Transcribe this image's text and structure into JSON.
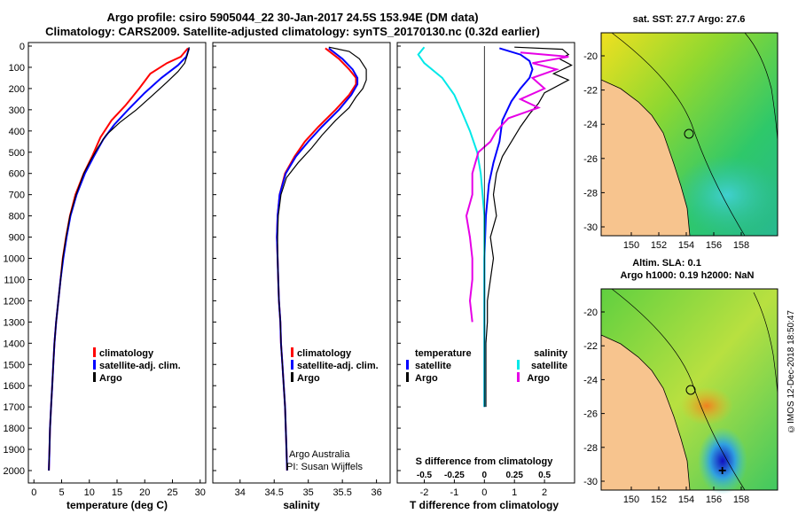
{
  "title_line1": "Argo profile: csiro 5905044_22 30-Jan-2017 24.5S 153.94E (DM data)",
  "title_line2": "Climatology: CARS2009. Satellite-adjusted climatology: synTS_20170130.nc (0.32d earlier)",
  "colors": {
    "climatology": "#ff0000",
    "satellite": "#0000ff",
    "argo": "#000000",
    "sat_salinity": "#00e8e8",
    "argo_salinity": "#e600e6",
    "land": "#f7c48e"
  },
  "depth_axis": {
    "ticks": [
      "0",
      "100",
      "200",
      "300",
      "400",
      "500",
      "600",
      "700",
      "800",
      "900",
      "1000",
      "1100",
      "1200",
      "1300",
      "1400",
      "1500",
      "1600",
      "1700",
      "1800",
      "1900",
      "2000"
    ],
    "range": [
      0,
      2000
    ]
  },
  "chart_data": [
    {
      "type": "line",
      "name": "temperature",
      "xlabel": "temperature (deg C)",
      "xlim": [
        -1,
        31
      ],
      "xticks": [
        "0",
        "5",
        "10",
        "15",
        "20",
        "25",
        "30"
      ],
      "xtick_values": [
        0,
        5,
        10,
        15,
        20,
        25,
        30
      ],
      "legend": [
        "climatology",
        "satellite-adj. clim.",
        "Argo"
      ],
      "series": [
        {
          "name": "climatology",
          "color": "#ff0000",
          "points": [
            [
              27.8,
              10
            ],
            [
              26.5,
              50
            ],
            [
              24,
              80
            ],
            [
              21,
              130
            ],
            [
              19,
              200
            ],
            [
              16.5,
              280
            ],
            [
              14,
              350
            ],
            [
              12,
              430
            ],
            [
              10.5,
              520
            ],
            [
              9,
              600
            ],
            [
              7.5,
              700
            ],
            [
              6.5,
              800
            ],
            [
              5.8,
              900
            ],
            [
              5.2,
              1000
            ],
            [
              4.8,
              1100
            ],
            [
              4.4,
              1200
            ],
            [
              4,
              1300
            ],
            [
              3.7,
              1400
            ],
            [
              3.5,
              1500
            ],
            [
              3.3,
              1600
            ],
            [
              3.1,
              1700
            ],
            [
              2.9,
              1800
            ],
            [
              2.8,
              1900
            ],
            [
              2.7,
              2000
            ]
          ]
        },
        {
          "name": "satellite-adj. clim.",
          "color": "#0000ff",
          "points": [
            [
              28,
              10
            ],
            [
              27.5,
              50
            ],
            [
              26,
              90
            ],
            [
              23,
              150
            ],
            [
              20,
              220
            ],
            [
              17,
              300
            ],
            [
              14.5,
              370
            ],
            [
              12.5,
              440
            ],
            [
              10.8,
              520
            ],
            [
              9.2,
              600
            ],
            [
              7.7,
              700
            ],
            [
              6.6,
              800
            ],
            [
              5.9,
              900
            ],
            [
              5.3,
              1000
            ],
            [
              4.8,
              1100
            ],
            [
              4.4,
              1200
            ],
            [
              4,
              1300
            ],
            [
              3.7,
              1400
            ],
            [
              3.5,
              1500
            ],
            [
              3.3,
              1600
            ],
            [
              3.1,
              1700
            ],
            [
              2.9,
              1800
            ],
            [
              2.8,
              1900
            ],
            [
              2.7,
              2000
            ]
          ]
        },
        {
          "name": "Argo",
          "color": "#000000",
          "points": [
            [
              28,
              5
            ],
            [
              27.7,
              40
            ],
            [
              27.2,
              80
            ],
            [
              26,
              120
            ],
            [
              24,
              170
            ],
            [
              21.5,
              230
            ],
            [
              18.5,
              300
            ],
            [
              15.5,
              360
            ],
            [
              13,
              420
            ],
            [
              11.5,
              480
            ],
            [
              10.2,
              540
            ],
            [
              9,
              600
            ],
            [
              7.6,
              700
            ],
            [
              6.5,
              800
            ],
            [
              5.8,
              900
            ],
            [
              5.2,
              1000
            ],
            [
              4.8,
              1100
            ],
            [
              4.4,
              1200
            ],
            [
              4,
              1300
            ],
            [
              3.7,
              1400
            ],
            [
              3.5,
              1500
            ],
            [
              3.3,
              1600
            ],
            [
              3.1,
              1700
            ],
            [
              2.9,
              1800
            ],
            [
              2.8,
              1900
            ],
            [
              2.7,
              2000
            ]
          ]
        }
      ]
    },
    {
      "type": "line",
      "name": "salinity",
      "xlabel": "salinity",
      "xlim": [
        33.6,
        36.2
      ],
      "xticks": [
        "34",
        "34.5",
        "35",
        "35.5",
        "36"
      ],
      "xtick_values": [
        34,
        34.5,
        35,
        35.5,
        36
      ],
      "legend": [
        "climatology",
        "satellite-adj. clim.",
        "Argo"
      ],
      "series": [
        {
          "name": "climatology",
          "color": "#ff0000",
          "points": [
            [
              35.25,
              10
            ],
            [
              35.45,
              60
            ],
            [
              35.6,
              110
            ],
            [
              35.7,
              150
            ],
            [
              35.7,
              180
            ],
            [
              35.6,
              230
            ],
            [
              35.4,
              300
            ],
            [
              35.15,
              380
            ],
            [
              34.95,
              450
            ],
            [
              34.8,
              520
            ],
            [
              34.66,
              600
            ],
            [
              34.58,
              700
            ],
            [
              34.55,
              800
            ],
            [
              34.54,
              900
            ],
            [
              34.55,
              1000
            ],
            [
              34.56,
              1100
            ],
            [
              34.57,
              1200
            ],
            [
              34.59,
              1300
            ],
            [
              34.6,
              1400
            ],
            [
              34.62,
              1500
            ],
            [
              34.64,
              1600
            ],
            [
              34.66,
              1700
            ],
            [
              34.67,
              1800
            ],
            [
              34.68,
              1900
            ],
            [
              34.69,
              2000
            ]
          ]
        },
        {
          "name": "satellite-adj. clim.",
          "color": "#0000ff",
          "points": [
            [
              35.3,
              10
            ],
            [
              35.5,
              60
            ],
            [
              35.65,
              110
            ],
            [
              35.72,
              150
            ],
            [
              35.72,
              180
            ],
            [
              35.63,
              230
            ],
            [
              35.45,
              300
            ],
            [
              35.2,
              380
            ],
            [
              35,
              450
            ],
            [
              34.82,
              520
            ],
            [
              34.67,
              600
            ],
            [
              34.58,
              700
            ],
            [
              34.55,
              800
            ],
            [
              34.54,
              900
            ],
            [
              34.55,
              1000
            ],
            [
              34.56,
              1100
            ],
            [
              34.57,
              1200
            ],
            [
              34.59,
              1300
            ],
            [
              34.6,
              1400
            ],
            [
              34.62,
              1500
            ],
            [
              34.64,
              1600
            ],
            [
              34.66,
              1700
            ],
            [
              34.67,
              1800
            ],
            [
              34.68,
              1900
            ],
            [
              34.69,
              2000
            ]
          ]
        },
        {
          "name": "Argo",
          "color": "#000000",
          "points": [
            [
              35.3,
              5
            ],
            [
              35.6,
              25
            ],
            [
              35.75,
              60
            ],
            [
              35.85,
              110
            ],
            [
              35.85,
              160
            ],
            [
              35.8,
              200
            ],
            [
              35.7,
              240
            ],
            [
              35.6,
              290
            ],
            [
              35.4,
              350
            ],
            [
              35.2,
              420
            ],
            [
              35.05,
              480
            ],
            [
              34.85,
              550
            ],
            [
              34.68,
              620
            ],
            [
              34.6,
              700
            ],
            [
              34.56,
              800
            ],
            [
              34.55,
              900
            ],
            [
              34.55,
              1000
            ],
            [
              34.56,
              1100
            ],
            [
              34.57,
              1200
            ],
            [
              34.59,
              1300
            ],
            [
              34.6,
              1400
            ],
            [
              34.62,
              1500
            ],
            [
              34.64,
              1600
            ],
            [
              34.66,
              1700
            ],
            [
              34.67,
              1800
            ],
            [
              34.68,
              1900
            ],
            [
              34.69,
              2000
            ]
          ]
        }
      ]
    },
    {
      "type": "line",
      "name": "differences",
      "xlabel": "T difference from climatology",
      "xlim": [
        -2.9,
        3.0
      ],
      "xticks": [
        "-2",
        "-1",
        "0",
        "1",
        "2"
      ],
      "xtick_values": [
        -2,
        -1,
        0,
        1,
        2
      ],
      "s_axis_label": "S difference from climatology",
      "s_ticks": [
        "-0.5",
        "-0.25",
        "0",
        "0.25",
        "0.5"
      ],
      "s_tick_values": [
        -0.5,
        -0.25,
        0,
        0.25,
        0.5
      ],
      "s_scale": 4,
      "legend_left_title": "temperature",
      "legend_right_title": "salinity",
      "legend_left": [
        "satellite",
        "Argo"
      ],
      "legend_right": [
        "satellite",
        "Argo"
      ],
      "series": [
        {
          "name": "T satellite",
          "color": "#0000ff",
          "points": [
            [
              0.5,
              10
            ],
            [
              1.2,
              40
            ],
            [
              1.5,
              70
            ],
            [
              1.6,
              110
            ],
            [
              1.5,
              150
            ],
            [
              1.2,
              200
            ],
            [
              0.9,
              260
            ],
            [
              0.6,
              350
            ],
            [
              0.5,
              450
            ],
            [
              0.3,
              550
            ],
            [
              0.15,
              650
            ],
            [
              0.05,
              800
            ],
            [
              0,
              1000
            ],
            [
              0,
              1500
            ],
            [
              0,
              1700
            ]
          ]
        },
        {
          "name": "T Argo",
          "color": "#000000",
          "points": [
            [
              1,
              5
            ],
            [
              2.6,
              15
            ],
            [
              2.8,
              40
            ],
            [
              2.5,
              60
            ],
            [
              2.9,
              90
            ],
            [
              2.3,
              130
            ],
            [
              2.8,
              160
            ],
            [
              2,
              220
            ],
            [
              1.8,
              270
            ],
            [
              1.5,
              320
            ],
            [
              1.2,
              380
            ],
            [
              0.9,
              450
            ],
            [
              0.6,
              520
            ],
            [
              0.4,
              600
            ],
            [
              0.3,
              700
            ],
            [
              0.4,
              800
            ],
            [
              0.2,
              900
            ],
            [
              0.3,
              1000
            ],
            [
              0.2,
              1100
            ],
            [
              0.1,
              1200
            ],
            [
              0.1,
              1300
            ],
            [
              0.05,
              1400
            ],
            [
              0.05,
              1600
            ],
            [
              0.05,
              1700
            ]
          ]
        },
        {
          "name": "S satellite",
          "color": "#00e8e8",
          "points": [
            [
              -0.5,
              5
            ],
            [
              -0.55,
              40
            ],
            [
              -0.5,
              80
            ],
            [
              -0.35,
              150
            ],
            [
              -0.25,
              230
            ],
            [
              -0.18,
              320
            ],
            [
              -0.12,
              400
            ],
            [
              -0.06,
              500
            ],
            [
              -0.03,
              600
            ],
            [
              0,
              800
            ],
            [
              0,
              1700
            ]
          ]
        },
        {
          "name": "S Argo",
          "color": "#e600e6",
          "points": [
            [
              0.3,
              30
            ],
            [
              0.7,
              50
            ],
            [
              0.4,
              80
            ],
            [
              0.6,
              110
            ],
            [
              0.4,
              150
            ],
            [
              0.5,
              200
            ],
            [
              0.3,
              250
            ],
            [
              0.45,
              290
            ],
            [
              0.2,
              340
            ],
            [
              0.1,
              400
            ],
            [
              0.05,
              450
            ],
            [
              -0.05,
              500
            ],
            [
              -0.1,
              600
            ],
            [
              -0.1,
              700
            ],
            [
              -0.15,
              800
            ],
            [
              -0.12,
              900
            ],
            [
              -0.1,
              1000
            ],
            [
              -0.1,
              1100
            ],
            [
              -0.12,
              1200
            ],
            [
              -0.1,
              1300
            ]
          ]
        }
      ]
    }
  ],
  "annotation": {
    "line1": "Argo Australia",
    "line2": "PI: Susan Wijffels"
  },
  "map_top": {
    "title": "sat. SST: 27.7 Argo: 27.6",
    "yticks": [
      "-20",
      "-22",
      "-24",
      "-26",
      "-28",
      "-30"
    ],
    "xticks": [
      "150",
      "152",
      "154",
      "156",
      "158"
    ]
  },
  "map_bottom": {
    "title_line1": "Altim. SLA: 0.1",
    "title_line2": "Argo h1000: 0.19 h2000: NaN",
    "yticks": [
      "-20",
      "-22",
      "-24",
      "-26",
      "-28",
      "-30"
    ],
    "xticks": [
      "150",
      "152",
      "154",
      "156",
      "158"
    ]
  },
  "stamp": "©IMOS 12-Dec-2018 18:50:47"
}
